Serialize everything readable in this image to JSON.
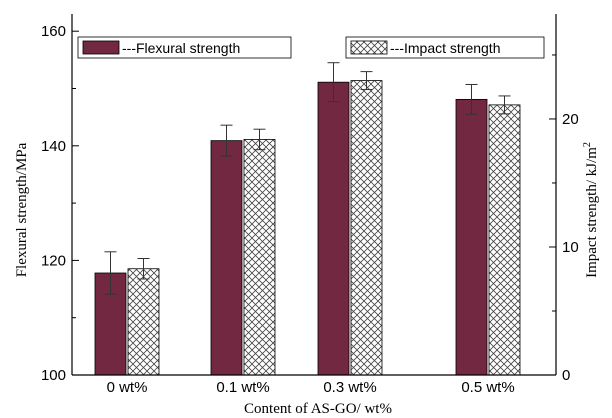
{
  "chart_data": {
    "type": "bar",
    "categories": [
      "0 wt%",
      "0.1 wt%",
      "0.3 wt%",
      "0.5 wt%"
    ],
    "xlabel": "Content of AS-GO/ wt%",
    "ylabel": "Flexural strength/MPa",
    "y2label": "Impact strength/ kJ/m",
    "y2label_sup": "2",
    "ylim": [
      100,
      163
    ],
    "yticks": [
      100,
      120,
      140,
      160
    ],
    "y2lim": [
      0,
      28.2
    ],
    "y2ticks": [
      0,
      10,
      20
    ],
    "grid": false,
    "legend_placement": "top",
    "series": [
      {
        "name": "---Flexural strength",
        "axis": "left",
        "color": "#722841",
        "values": [
          117.8,
          140.9,
          151.1,
          148.1
        ],
        "errors": [
          3.7,
          2.7,
          3.4,
          2.6
        ]
      },
      {
        "name": "---Impact strength",
        "axis": "right",
        "color": "#ffffff",
        "pattern": "crosshatch",
        "values": [
          8.3,
          18.4,
          23.0,
          21.1
        ],
        "errors": [
          0.8,
          0.8,
          0.7,
          0.7
        ]
      }
    ]
  }
}
